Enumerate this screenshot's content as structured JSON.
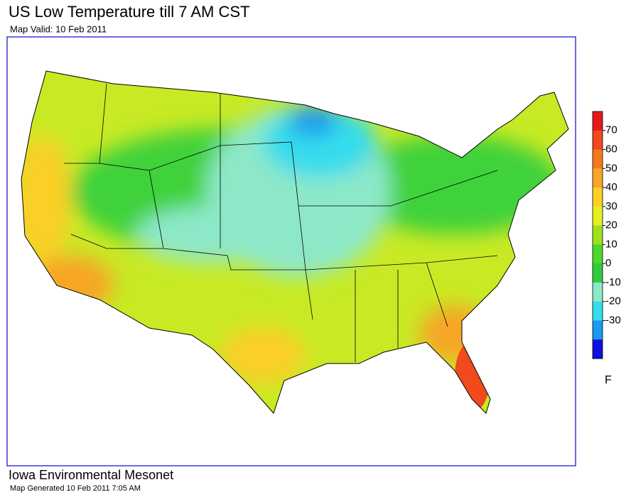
{
  "header": {
    "title": "US Low Temperature till 7 AM CST",
    "subtitle": "Map Valid: 10 Feb 2011"
  },
  "legend": {
    "ticks": [
      70,
      60,
      50,
      40,
      30,
      20,
      10,
      0,
      -10,
      -20,
      -30
    ],
    "unit": "F",
    "colors": [
      "#e3191c",
      "#f04a1e",
      "#f6791f",
      "#f8a528",
      "#fbcf26",
      "#e6ee22",
      "#9be21c",
      "#4cd62e",
      "#2fcc3c",
      "#8de8c8",
      "#34dcec",
      "#1a9af0",
      "#1010e0"
    ]
  },
  "footer": {
    "source": "Iowa Environmental Mesonet",
    "generated": "Map Generated 10 Feb 2011 7:05 AM"
  }
}
